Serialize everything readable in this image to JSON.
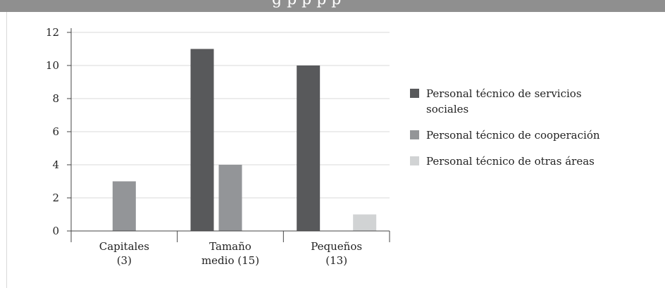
{
  "header": {
    "title_fragment": "g                  p        p   p       p"
  },
  "chart_data": {
    "type": "bar",
    "title": "",
    "xlabel": "",
    "ylabel": "",
    "ylim": [
      0,
      12
    ],
    "yticks": [
      "0",
      "2",
      "4",
      "6",
      "8",
      "10",
      "12"
    ],
    "grid": true,
    "legend_position": "right",
    "categories": [
      [
        "Capitales",
        "(3)"
      ],
      [
        "Tamaño",
        "medio (15)"
      ],
      [
        "Pequeños",
        "(13)"
      ]
    ],
    "series": [
      {
        "name": [
          "Personal técnico de servicios",
          "sociales"
        ],
        "color": "#58595b",
        "values": [
          0,
          11,
          10
        ]
      },
      {
        "name": [
          "Personal técnico de cooperación"
        ],
        "color": "#939598",
        "values": [
          3,
          4,
          0
        ]
      },
      {
        "name": [
          "Personal técnico de otras áreas"
        ],
        "color": "#d1d3d4",
        "values": [
          0,
          0,
          1
        ]
      }
    ]
  }
}
